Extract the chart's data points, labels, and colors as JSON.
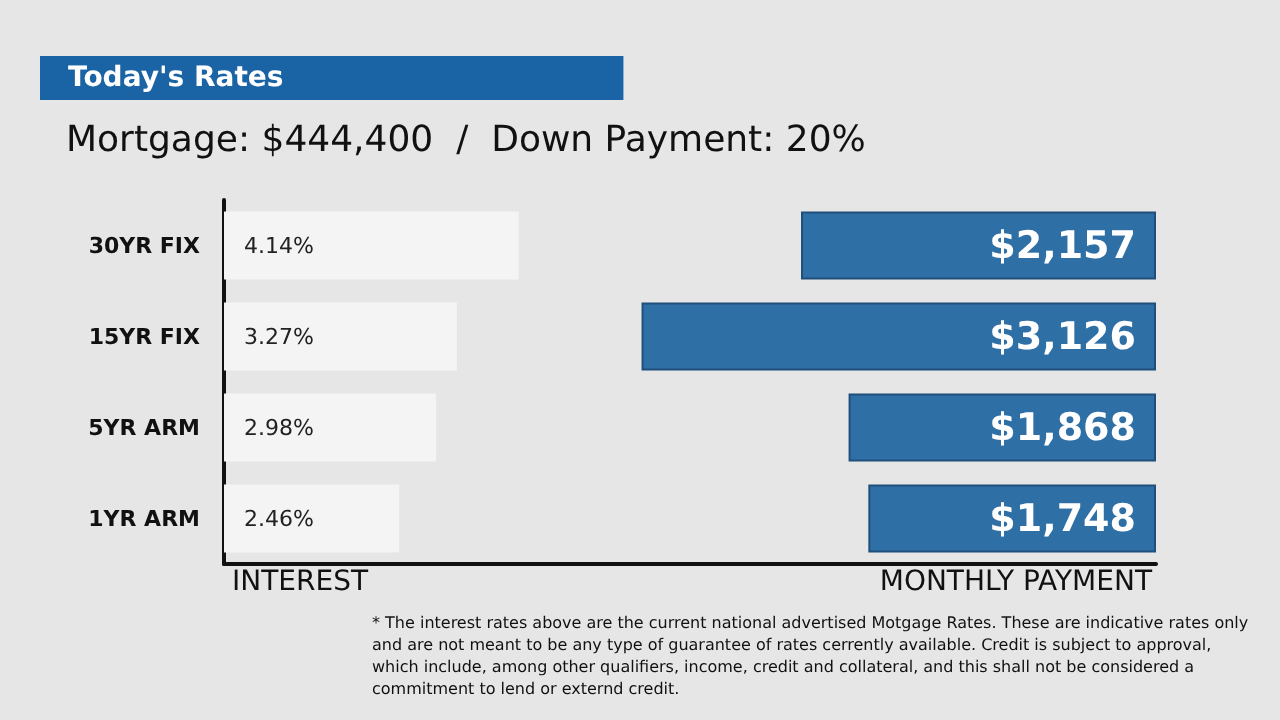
{
  "chart_data": {
    "type": "bar",
    "orientation": "horizontal",
    "title": "Today's Rates",
    "subtitle": "Mortgage: $444,400  /  Down Payment: 20%",
    "categories": [
      "30YR FIX",
      "15YR FIX",
      "5YR ARM",
      "1YR ARM"
    ],
    "xlabel": "INTEREST",
    "x2label": "MONTHLY PAYMENT",
    "series": [
      {
        "color": "#f4f4f4",
        "values": [
          4.14,
          3.27,
          2.98,
          2.46
        ],
        "value_labels": [
          "4.14%",
          "3.27%",
          "2.98%",
          "2.46%"
        ]
      },
      {
        "color": "#2e6fa6",
        "values": [
          2157,
          3126,
          1868,
          1748
        ],
        "value_labels": [
          "$2,157",
          "$3,126",
          "$1,868",
          "$1,748"
        ]
      }
    ],
    "tick_labels": false,
    "grid": false,
    "annotations": [
      "* The interest rates above are the current national advertised Motgage Rates. These are indicative rates only and are not meant to be any type of guarantee of rates cerrently available. Credit is subject to approval, which include, among other qualifiers, income, credit and collateral, and this shall not be considered a commitment to lend or externd credit."
    ]
  }
}
